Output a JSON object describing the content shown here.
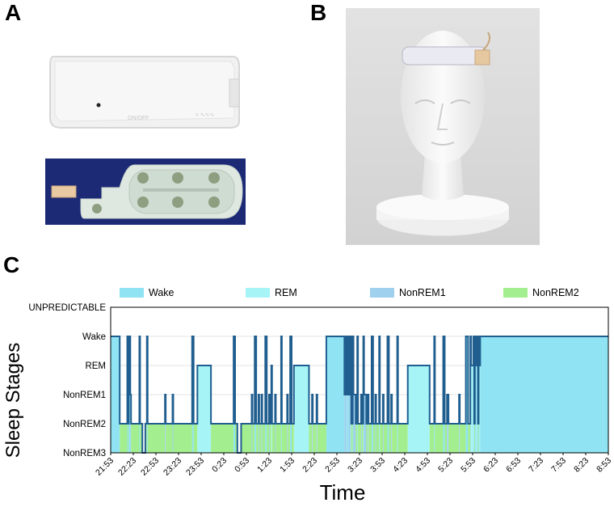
{
  "panels": {
    "a": "A",
    "b": "B",
    "c": "C"
  },
  "chart_data": {
    "type": "area",
    "ylabel": "Sleep Stages",
    "xlabel": "Time",
    "categories": [
      "UNPREDICTABLE",
      "Wake",
      "REM",
      "NonREM1",
      "NonREM2",
      "NonREM3"
    ],
    "x_ticks": [
      "21:53",
      "22:23",
      "22:53",
      "23:23",
      "23:53",
      "0:23",
      "0:53",
      "1:23",
      "1:53",
      "2:23",
      "2:53",
      "3:23",
      "3:53",
      "4:23",
      "4:53",
      "5:23",
      "5:53",
      "6:23",
      "6:53",
      "7:23",
      "7:53",
      "8:23",
      "8:53"
    ],
    "legend": [
      "Wake",
      "REM",
      "NonREM1",
      "NonREM2"
    ],
    "legend_position": "top",
    "grid": true,
    "colors": {
      "wake": "#8fe3f2",
      "rem": "#a6f4f6",
      "nonrem1": "#9fd0ee",
      "nonrem2": "#a3ee8e",
      "line": "#1f5e8f"
    },
    "xlim_minutes": [
      0,
      660
    ],
    "segments": [
      {
        "start": 0,
        "end": 12,
        "stage": "Wake"
      },
      {
        "start": 12,
        "end": 22,
        "stage": "NonREM2"
      },
      {
        "start": 22,
        "end": 23,
        "stage": "Wake"
      },
      {
        "start": 23,
        "end": 24,
        "stage": "NonREM2"
      },
      {
        "start": 24,
        "end": 26,
        "stage": "Wake"
      },
      {
        "start": 26,
        "end": 27,
        "stage": "NonREM1"
      },
      {
        "start": 27,
        "end": 38,
        "stage": "NonREM2"
      },
      {
        "start": 38,
        "end": 39,
        "stage": "Wake"
      },
      {
        "start": 39,
        "end": 42,
        "stage": "NonREM2"
      },
      {
        "start": 42,
        "end": 46,
        "stage": "NonREM3"
      },
      {
        "start": 46,
        "end": 48,
        "stage": "NonREM2"
      },
      {
        "start": 48,
        "end": 49,
        "stage": "Wake"
      },
      {
        "start": 49,
        "end": 72,
        "stage": "NonREM2"
      },
      {
        "start": 72,
        "end": 73,
        "stage": "NonREM1"
      },
      {
        "start": 73,
        "end": 82,
        "stage": "NonREM2"
      },
      {
        "start": 82,
        "end": 83,
        "stage": "NonREM1"
      },
      {
        "start": 83,
        "end": 108,
        "stage": "NonREM2"
      },
      {
        "start": 108,
        "end": 110,
        "stage": "Wake"
      },
      {
        "start": 110,
        "end": 115,
        "stage": "NonREM2"
      },
      {
        "start": 115,
        "end": 133,
        "stage": "REM"
      },
      {
        "start": 133,
        "end": 163,
        "stage": "NonREM2"
      },
      {
        "start": 163,
        "end": 165,
        "stage": "Wake"
      },
      {
        "start": 165,
        "end": 168,
        "stage": "NonREM2"
      },
      {
        "start": 168,
        "end": 173,
        "stage": "NonREM3"
      },
      {
        "start": 173,
        "end": 187,
        "stage": "NonREM2"
      },
      {
        "start": 187,
        "end": 188,
        "stage": "NonREM1"
      },
      {
        "start": 188,
        "end": 191,
        "stage": "NonREM2"
      },
      {
        "start": 191,
        "end": 193,
        "stage": "Wake"
      },
      {
        "start": 193,
        "end": 196,
        "stage": "NonREM2"
      },
      {
        "start": 196,
        "end": 197,
        "stage": "NonREM1"
      },
      {
        "start": 197,
        "end": 200,
        "stage": "NonREM2"
      },
      {
        "start": 200,
        "end": 201,
        "stage": "NonREM1"
      },
      {
        "start": 201,
        "end": 205,
        "stage": "NonREM2"
      },
      {
        "start": 205,
        "end": 207,
        "stage": "Wake"
      },
      {
        "start": 207,
        "end": 210,
        "stage": "NonREM2"
      },
      {
        "start": 210,
        "end": 211,
        "stage": "NonREM1"
      },
      {
        "start": 211,
        "end": 213,
        "stage": "NonREM2"
      },
      {
        "start": 213,
        "end": 214,
        "stage": "REM"
      },
      {
        "start": 214,
        "end": 218,
        "stage": "NonREM2"
      },
      {
        "start": 218,
        "end": 219,
        "stage": "NonREM1"
      },
      {
        "start": 219,
        "end": 226,
        "stage": "NonREM2"
      },
      {
        "start": 226,
        "end": 227,
        "stage": "Wake"
      },
      {
        "start": 227,
        "end": 234,
        "stage": "NonREM2"
      },
      {
        "start": 234,
        "end": 235,
        "stage": "NonREM1"
      },
      {
        "start": 235,
        "end": 238,
        "stage": "NonREM2"
      },
      {
        "start": 238,
        "end": 240,
        "stage": "Wake"
      },
      {
        "start": 240,
        "end": 243,
        "stage": "NonREM2"
      },
      {
        "start": 243,
        "end": 263,
        "stage": "REM"
      },
      {
        "start": 263,
        "end": 267,
        "stage": "NonREM2"
      },
      {
        "start": 267,
        "end": 268,
        "stage": "NonREM1"
      },
      {
        "start": 268,
        "end": 273,
        "stage": "NonREM2"
      },
      {
        "start": 273,
        "end": 274,
        "stage": "NonREM1"
      },
      {
        "start": 274,
        "end": 286,
        "stage": "NonREM2"
      },
      {
        "start": 286,
        "end": 310,
        "stage": "Wake"
      },
      {
        "start": 310,
        "end": 312,
        "stage": "NonREM1"
      },
      {
        "start": 312,
        "end": 313,
        "stage": "Wake"
      },
      {
        "start": 313,
        "end": 314,
        "stage": "NonREM1"
      },
      {
        "start": 314,
        "end": 316,
        "stage": "Wake"
      },
      {
        "start": 316,
        "end": 318,
        "stage": "NonREM1"
      },
      {
        "start": 318,
        "end": 319,
        "stage": "Wake"
      },
      {
        "start": 319,
        "end": 321,
        "stage": "NonREM2"
      },
      {
        "start": 321,
        "end": 322,
        "stage": "Wake"
      },
      {
        "start": 322,
        "end": 325,
        "stage": "NonREM1"
      },
      {
        "start": 325,
        "end": 327,
        "stage": "NonREM2"
      },
      {
        "start": 327,
        "end": 328,
        "stage": "Wake"
      },
      {
        "start": 328,
        "end": 332,
        "stage": "NonREM2"
      },
      {
        "start": 332,
        "end": 333,
        "stage": "NonREM1"
      },
      {
        "start": 333,
        "end": 335,
        "stage": "NonREM2"
      },
      {
        "start": 335,
        "end": 336,
        "stage": "Wake"
      },
      {
        "start": 336,
        "end": 339,
        "stage": "NonREM1"
      },
      {
        "start": 339,
        "end": 341,
        "stage": "NonREM2"
      },
      {
        "start": 341,
        "end": 342,
        "stage": "NonREM1"
      },
      {
        "start": 342,
        "end": 346,
        "stage": "NonREM2"
      },
      {
        "start": 346,
        "end": 348,
        "stage": "Wake"
      },
      {
        "start": 348,
        "end": 351,
        "stage": "NonREM2"
      },
      {
        "start": 351,
        "end": 352,
        "stage": "NonREM1"
      },
      {
        "start": 352,
        "end": 356,
        "stage": "NonREM2"
      },
      {
        "start": 356,
        "end": 357,
        "stage": "Wake"
      },
      {
        "start": 357,
        "end": 361,
        "stage": "NonREM2"
      },
      {
        "start": 361,
        "end": 362,
        "stage": "NonREM1"
      },
      {
        "start": 362,
        "end": 367,
        "stage": "NonREM2"
      },
      {
        "start": 367,
        "end": 369,
        "stage": "Wake"
      },
      {
        "start": 369,
        "end": 372,
        "stage": "NonREM2"
      },
      {
        "start": 372,
        "end": 373,
        "stage": "NonREM1"
      },
      {
        "start": 373,
        "end": 380,
        "stage": "NonREM2"
      },
      {
        "start": 380,
        "end": 381,
        "stage": "Wake"
      },
      {
        "start": 381,
        "end": 394,
        "stage": "NonREM2"
      },
      {
        "start": 394,
        "end": 423,
        "stage": "REM"
      },
      {
        "start": 423,
        "end": 429,
        "stage": "NonREM2"
      },
      {
        "start": 429,
        "end": 430,
        "stage": "Wake"
      },
      {
        "start": 430,
        "end": 441,
        "stage": "NonREM2"
      },
      {
        "start": 441,
        "end": 443,
        "stage": "Wake"
      },
      {
        "start": 443,
        "end": 446,
        "stage": "NonREM2"
      },
      {
        "start": 446,
        "end": 448,
        "stage": "NonREM1"
      },
      {
        "start": 448,
        "end": 462,
        "stage": "NonREM2"
      },
      {
        "start": 462,
        "end": 463,
        "stage": "NonREM1"
      },
      {
        "start": 463,
        "end": 471,
        "stage": "NonREM2"
      },
      {
        "start": 471,
        "end": 474,
        "stage": "Wake"
      },
      {
        "start": 474,
        "end": 477,
        "stage": "NonREM2"
      },
      {
        "start": 477,
        "end": 478,
        "stage": "Wake"
      },
      {
        "start": 478,
        "end": 481,
        "stage": "REM"
      },
      {
        "start": 481,
        "end": 482,
        "stage": "Wake"
      },
      {
        "start": 482,
        "end": 483,
        "stage": "NonREM2"
      },
      {
        "start": 483,
        "end": 485,
        "stage": "Wake"
      },
      {
        "start": 485,
        "end": 486,
        "stage": "REM"
      },
      {
        "start": 486,
        "end": 487,
        "stage": "Wake"
      },
      {
        "start": 487,
        "end": 488,
        "stage": "NonREM2"
      },
      {
        "start": 488,
        "end": 489,
        "stage": "Wake"
      },
      {
        "start": 489,
        "end": 490,
        "stage": "REM"
      },
      {
        "start": 490,
        "end": 660,
        "stage": "Wake"
      }
    ]
  }
}
